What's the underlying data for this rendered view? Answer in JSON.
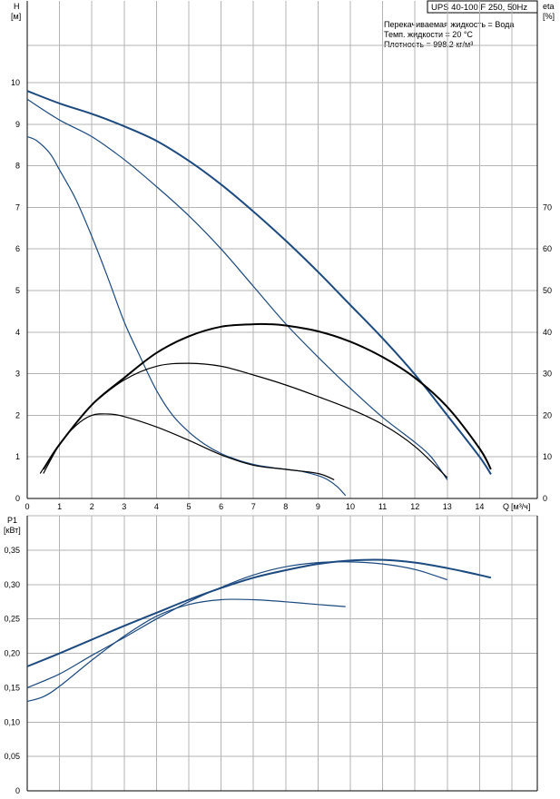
{
  "chart_data": [
    {
      "type": "line",
      "title": "UPS 40-100 F 250, 50Hz",
      "info": [
        "Перекачиваемая жидкость = Вода",
        "Темп. жидкости = 20 °C",
        "Плотность = 998.2 кг/м³"
      ],
      "ylabel": "H",
      "yunit": "[м]",
      "y2label": "eta",
      "y2unit": "[%]",
      "xlabel": "Q",
      "xunit": "[м³/ч]",
      "xlim": [
        0,
        15
      ],
      "ylim": [
        0,
        10.9
      ],
      "y2lim": [
        0,
        109
      ],
      "grid": true,
      "xticks": [
        "0",
        "1",
        "2",
        "3",
        "4",
        "5",
        "6",
        "7",
        "8",
        "9",
        "10",
        "11",
        "12",
        "13",
        "14"
      ],
      "yticks": [
        "0",
        "1",
        "2",
        "3",
        "4",
        "5",
        "6",
        "7",
        "8",
        "9",
        "10"
      ],
      "y2ticks": [
        "0",
        "10",
        "20",
        "30",
        "40",
        "50",
        "60",
        "70"
      ],
      "head_series": [
        {
          "x": [
            0,
            1,
            2,
            3,
            4,
            5,
            6,
            7,
            8,
            9,
            10,
            11,
            12,
            13,
            14,
            14.35
          ],
          "y": [
            9.8,
            9.5,
            9.25,
            8.95,
            8.6,
            8.12,
            7.55,
            6.9,
            6.2,
            5.45,
            4.65,
            3.85,
            2.98,
            2.0,
            1.0,
            0.58
          ]
        },
        {
          "x": [
            0,
            1,
            2,
            3,
            4,
            5,
            6,
            7,
            8,
            9,
            10,
            11,
            12,
            12.5,
            13
          ],
          "y": [
            9.6,
            9.1,
            8.7,
            8.15,
            7.5,
            6.8,
            6.0,
            5.1,
            4.2,
            3.4,
            2.65,
            1.95,
            1.35,
            1.0,
            0.45
          ]
        },
        {
          "x": [
            0,
            0.3,
            0.7,
            1,
            1.5,
            2,
            2.5,
            3,
            3.5,
            4,
            4.5,
            5,
            5.5,
            6,
            6.5,
            7,
            7.5,
            8,
            8.5,
            9,
            9.3,
            9.6,
            9.85
          ],
          "y": [
            8.7,
            8.6,
            8.3,
            7.9,
            7.2,
            6.3,
            5.3,
            4.25,
            3.4,
            2.6,
            2.0,
            1.6,
            1.3,
            1.08,
            0.93,
            0.82,
            0.75,
            0.7,
            0.65,
            0.55,
            0.45,
            0.28,
            0.07
          ]
        }
      ],
      "eta_series": [
        {
          "x": [
            0.5,
            1,
            2,
            3,
            4,
            5,
            6,
            7,
            7.5,
            8,
            9,
            10,
            11,
            12,
            13,
            14,
            14.35
          ],
          "y": [
            7,
            13,
            22.5,
            29,
            35,
            39,
            41.3,
            41.9,
            41.9,
            41.6,
            40.2,
            37.7,
            34,
            29,
            22,
            12,
            7
          ]
        },
        {
          "x": [
            0.4,
            1,
            1.5,
            2,
            3,
            4,
            5,
            6,
            7,
            8,
            9,
            10,
            11,
            12,
            13
          ],
          "y": [
            6,
            13,
            18,
            22.5,
            28.5,
            31.8,
            32.5,
            31.8,
            29.7,
            27.3,
            24.5,
            21.5,
            17.8,
            12.5,
            5
          ]
        },
        {
          "x": [
            0.5,
            1,
            1.5,
            2,
            2.5,
            3,
            4,
            5,
            6,
            7,
            8,
            9,
            9.5
          ],
          "y": [
            6,
            13,
            17.5,
            20,
            20.3,
            19.7,
            17.2,
            14,
            10.5,
            8,
            7,
            6,
            4.5
          ]
        }
      ]
    },
    {
      "type": "line",
      "ylabel": "P1",
      "yunit": "[кВт]",
      "xlim": [
        0,
        15
      ],
      "ylim": [
        0,
        0.4
      ],
      "grid": true,
      "yticks": [
        "0",
        "0,05",
        "0,10",
        "0,15",
        "0,20",
        "0,25",
        "0,30",
        "0,35"
      ],
      "series": [
        {
          "x": [
            0,
            1,
            2,
            3,
            4,
            5,
            6,
            7,
            8,
            9,
            10,
            11,
            12,
            13,
            14,
            14.35
          ],
          "y": [
            0.181,
            0.2,
            0.22,
            0.24,
            0.259,
            0.278,
            0.295,
            0.31,
            0.321,
            0.33,
            0.335,
            0.336,
            0.332,
            0.324,
            0.314,
            0.31
          ]
        },
        {
          "x": [
            0,
            1,
            2,
            3,
            4,
            5,
            6,
            7,
            8,
            9,
            10,
            11,
            12,
            13
          ],
          "y": [
            0.15,
            0.17,
            0.197,
            0.223,
            0.25,
            0.275,
            0.296,
            0.314,
            0.326,
            0.332,
            0.333,
            0.33,
            0.322,
            0.307
          ]
        },
        {
          "x": [
            0,
            0.5,
            1,
            2,
            3,
            4,
            5,
            6,
            7,
            8,
            9,
            9.85
          ],
          "y": [
            0.13,
            0.137,
            0.152,
            0.19,
            0.225,
            0.254,
            0.271,
            0.278,
            0.278,
            0.275,
            0.271,
            0.268
          ]
        }
      ]
    }
  ]
}
